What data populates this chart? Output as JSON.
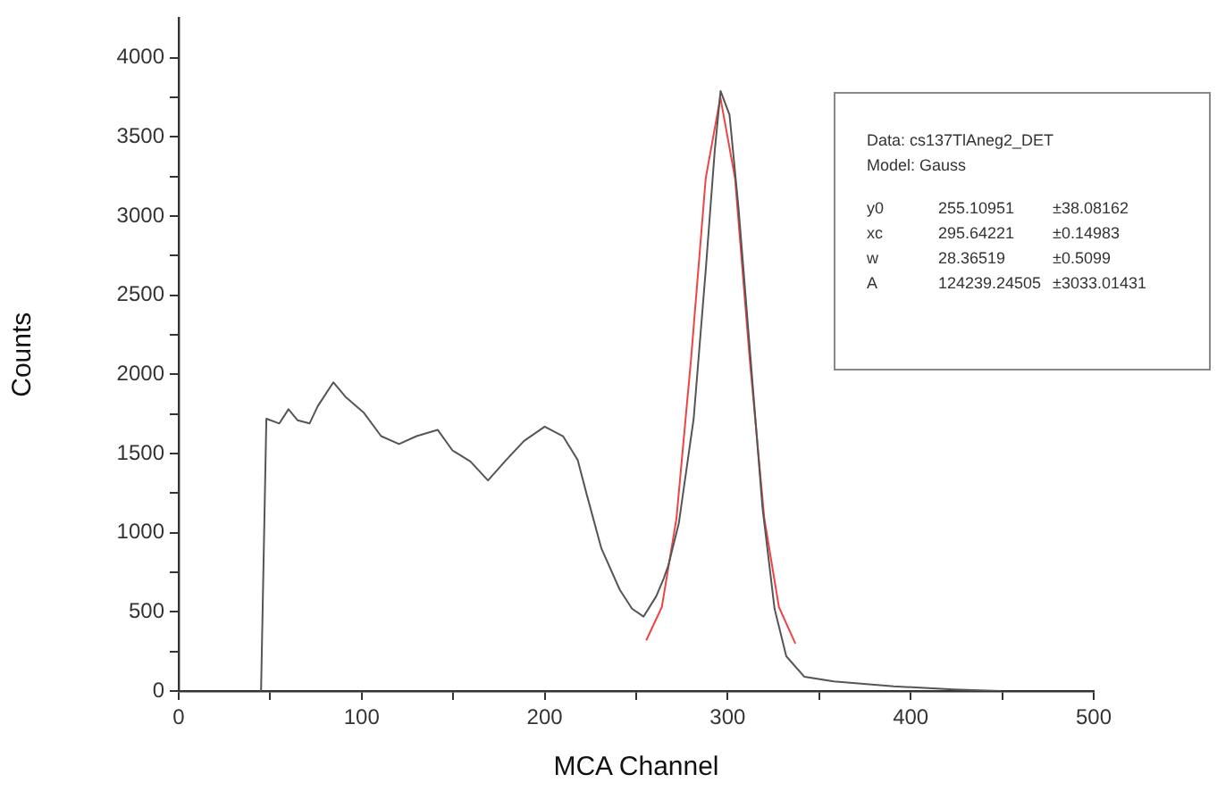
{
  "chart_data": {
    "type": "line",
    "xlabel": "MCA Channel",
    "ylabel": "Counts",
    "xlim": [
      0,
      500
    ],
    "ylim": [
      0,
      4250
    ],
    "xticks": [
      0,
      {
        "value": 50,
        "label": null
      },
      100,
      {
        "value": 150,
        "label": null
      },
      200,
      {
        "value": 250,
        "label": null
      },
      300,
      {
        "value": 350,
        "label": null
      },
      400,
      {
        "value": 450,
        "label": null
      },
      500
    ],
    "yticks": [
      0,
      {
        "value": 250,
        "label": null
      },
      500,
      {
        "value": 750,
        "label": null
      },
      1000,
      {
        "value": 1250,
        "label": null
      },
      1500,
      {
        "value": 1750,
        "label": null
      },
      2000,
      {
        "value": 2250,
        "label": null
      },
      2500,
      {
        "value": 2750,
        "label": null
      },
      3000,
      {
        "value": 3250,
        "label": null
      },
      3500,
      {
        "value": 3750,
        "label": null
      },
      4000
    ],
    "grid": false,
    "legend": false,
    "marker": "none",
    "line_style": "solid",
    "annotations": [
      "Data: cs137TlAneg2_DET",
      "Model: Gauss",
      "y0\t255.10951\t±38.08162",
      "xc\t295.64221\t±0.14983",
      "w\t28.36519\t±0.5099",
      "A\t124239.24505\t±3033.01431"
    ],
    "series": [
      {
        "color": "#555555",
        "x": [
          45,
          45.3,
          47.9,
          55,
          60,
          65,
          71.5,
          76,
          84.5,
          91,
          101,
          110.6,
          120.4,
          130,
          141.5,
          149.6,
          159.4,
          169,
          179,
          188.7,
          200,
          210,
          218,
          223,
          231,
          241,
          247.7,
          254,
          261,
          265,
          267.5,
          273.3,
          281.4,
          288,
          292.9,
          296.1,
          301,
          306,
          312.5,
          319,
          325.6,
          332,
          341.9,
          358,
          390.7,
          423.3,
          449
        ],
        "values": [
          0,
          0,
          1720,
          1690,
          1780,
          1710,
          1690,
          1800,
          1950,
          1860,
          1760,
          1610,
          1560,
          1610,
          1650,
          1520,
          1450,
          1330,
          1460,
          1580,
          1670,
          1610,
          1460,
          1240,
          900,
          640,
          520,
          470,
          600,
          710,
          790,
          1060,
          1720,
          2660,
          3410,
          3790,
          3640,
          3040,
          2100,
          1160,
          520,
          220,
          90,
          60,
          30,
          10,
          0
        ]
      },
      {
        "color": "#ee4444",
        "x": [
          255.5,
          264,
          272,
          280,
          288,
          296,
          304,
          312,
          320,
          328,
          337
        ],
        "values": [
          320,
          530,
          1090,
          2100,
          3240,
          3750,
          3240,
          2100,
          1090,
          530,
          300
        ]
      }
    ]
  }
}
